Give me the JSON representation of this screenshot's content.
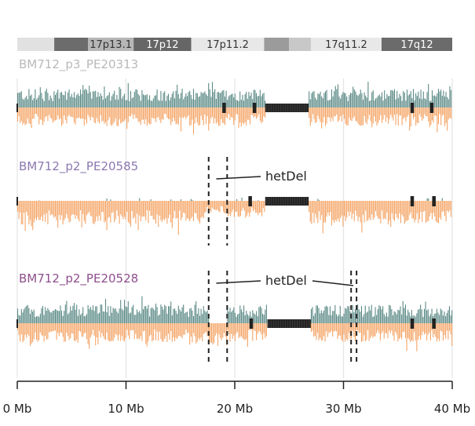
{
  "chart_data": {
    "type": "bar",
    "x_unit": "Mb",
    "xlim": [
      0,
      40
    ],
    "x_ticks": [
      0,
      10,
      20,
      30,
      40
    ],
    "x_tick_labels": [
      "0 Mb",
      "10 Mb",
      "20 Mb",
      "30 Mb",
      "40 Mb"
    ],
    "ideogram": {
      "bands": [
        {
          "start": 0.0,
          "end": 3.4,
          "label": "",
          "color": "#e1e1e1"
        },
        {
          "start": 3.4,
          "end": 6.5,
          "label": "",
          "color": "#6c6c6c"
        },
        {
          "start": 6.5,
          "end": 10.7,
          "label": "17p13.1",
          "color": "#b6b6b6"
        },
        {
          "start": 10.7,
          "end": 16.0,
          "label": "17p12",
          "color": "#666666"
        },
        {
          "start": 16.0,
          "end": 22.7,
          "label": "17p11.2",
          "color": "#e8e8e8"
        },
        {
          "start": 22.7,
          "end": 25.0,
          "label": "",
          "color": "#9b9b9b"
        },
        {
          "start": 25.0,
          "end": 27.0,
          "label": "",
          "color": "#c8c8c8"
        },
        {
          "start": 27.0,
          "end": 33.5,
          "label": "17q11.2",
          "color": "#e8e8e8"
        },
        {
          "start": 33.5,
          "end": 40.0,
          "label": "17q12",
          "color": "#6b6b6b"
        }
      ]
    },
    "series_colors": {
      "up": "#5b8a86",
      "down": "#f4a466",
      "gap": "#2a2a2a"
    },
    "tracks": [
      {
        "name": "BM712_p3_PE20313",
        "label_color": "#b9b9b9",
        "segments": [
          {
            "start": 0,
            "end": 22.8,
            "state": "normal"
          },
          {
            "start": 22.8,
            "end": 26.8,
            "state": "gap"
          },
          {
            "start": 26.8,
            "end": 40,
            "state": "normal"
          }
        ],
        "small_gaps": [
          19.0,
          21.8,
          36.3,
          38.1
        ],
        "dashed_lines": [],
        "annotations": []
      },
      {
        "name": "BM712_p2_PE20585",
        "label_color": "#8b78b0",
        "segments": [
          {
            "start": 0,
            "end": 17.2,
            "state": "loss"
          },
          {
            "start": 17.2,
            "end": 19.0,
            "state": "loss-strong"
          },
          {
            "start": 19.0,
            "end": 22.8,
            "state": "mixed"
          },
          {
            "start": 22.8,
            "end": 26.8,
            "state": "gap"
          },
          {
            "start": 26.8,
            "end": 40,
            "state": "loss"
          }
        ],
        "small_gaps": [
          21.4,
          36.3,
          38.3
        ],
        "dashed_lines": [
          17.6,
          19.3
        ],
        "annotations": [
          {
            "text": "hetDel",
            "targets": [
              18.3
            ]
          }
        ]
      },
      {
        "name": "BM712_p2_PE20528",
        "label_color": "#8e4e8c",
        "segments": [
          {
            "start": 0,
            "end": 17.6,
            "state": "normal"
          },
          {
            "start": 17.6,
            "end": 19.3,
            "state": "loss"
          },
          {
            "start": 19.3,
            "end": 23.0,
            "state": "normal"
          },
          {
            "start": 23.0,
            "end": 27.0,
            "state": "gap"
          },
          {
            "start": 27.0,
            "end": 40,
            "state": "normal"
          }
        ],
        "small_gaps": [
          21.5,
          36.3,
          38.3
        ],
        "dashed_lines": [
          17.6,
          19.3,
          30.7,
          31.2
        ],
        "annotations": [
          {
            "text": "hetDel",
            "targets": [
              18.3,
              30.9
            ]
          }
        ]
      }
    ]
  }
}
